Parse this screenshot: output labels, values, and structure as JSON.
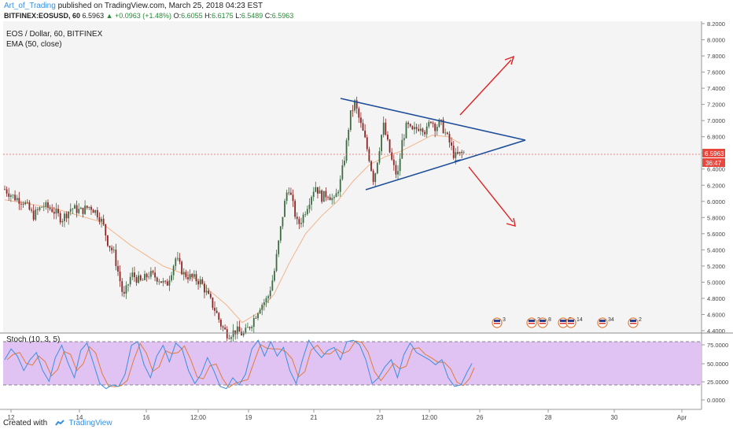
{
  "header": {
    "author": "Art_of_Trading",
    "publish_text": "published on TradingView.com, March 25, 2018 04:23 EST",
    "ticker": "BITFINEX:EOSUSD, 60",
    "last": "6.5963",
    "change": "▲ +0.0963 (+1.48%)",
    "open_label": "O:",
    "open": "6.6055",
    "high_label": "H:",
    "high": "6.6175",
    "low_label": "L:",
    "low": "6.5489",
    "close_label": "C:",
    "close": "6.5963"
  },
  "legend": {
    "symbol": "EOS / Dollar, 60, BITFINEX",
    "indicator": "EMA (50, close)",
    "oscillator": "Stoch (10, 3, 5)"
  },
  "footer": {
    "created_with": "Created with",
    "brand": "TradingView"
  },
  "colors": {
    "up": "#3d6b43",
    "down": "#8a2525",
    "ema": "#f2b48a",
    "triangle": "#1f4e9a",
    "arrow": "#e02020",
    "price_label_bg": "#e8473d",
    "stoch_k": "#3a8fe0",
    "stoch_d": "#e07a3a",
    "stoch_band": "#e0c3f2"
  },
  "chart_data": {
    "type": "candlestick",
    "price_axis": {
      "ticks": [
        "4.4000",
        "4.6000",
        "4.8000",
        "5.0000",
        "5.2000",
        "5.4000",
        "5.6000",
        "5.8000",
        "6.0000",
        "6.2000",
        "6.4000",
        "6.6000",
        "6.8000",
        "7.0000",
        "7.2000",
        "7.4000",
        "7.6000",
        "7.8000",
        "8.0000",
        "8.2000"
      ],
      "range": [
        4.4,
        8.2
      ],
      "current_price": "6.5963",
      "countdown": "36:47"
    },
    "time_axis": {
      "ticks": [
        "12",
        "14",
        "16",
        "12:00",
        "19",
        "21",
        "23",
        "12:00",
        "26",
        "28",
        "30",
        "Apr"
      ]
    },
    "stoch_axis": {
      "ticks": [
        "75.0000",
        "50.0000",
        "25.0000",
        "0.0000"
      ],
      "range": [
        0,
        100
      ],
      "bands": [
        80,
        20
      ]
    },
    "price_path": [
      [
        0,
        6.15
      ],
      [
        12,
        6.05
      ],
      [
        24,
        6.0
      ],
      [
        36,
        5.82
      ],
      [
        48,
        5.95
      ],
      [
        60,
        5.9
      ],
      [
        72,
        5.78
      ],
      [
        84,
        5.92
      ],
      [
        96,
        5.88
      ],
      [
        108,
        5.94
      ],
      [
        118,
        5.84
      ],
      [
        124,
        5.72
      ],
      [
        130,
        5.5
      ],
      [
        138,
        5.35
      ],
      [
        146,
        5.0
      ],
      [
        150,
        4.8
      ],
      [
        160,
        5.1
      ],
      [
        172,
        5.0
      ],
      [
        182,
        5.1
      ],
      [
        194,
        5.05
      ],
      [
        204,
        4.95
      ],
      [
        216,
        5.3
      ],
      [
        226,
        5.1
      ],
      [
        238,
        5.05
      ],
      [
        248,
        5.0
      ],
      [
        258,
        4.8
      ],
      [
        266,
        4.65
      ],
      [
        274,
        4.45
      ],
      [
        282,
        4.35
      ],
      [
        292,
        4.4
      ],
      [
        302,
        4.35
      ],
      [
        312,
        4.5
      ],
      [
        322,
        4.7
      ],
      [
        332,
        4.8
      ],
      [
        340,
        5.1
      ],
      [
        346,
        5.5
      ],
      [
        352,
        5.9
      ],
      [
        358,
        6.2
      ],
      [
        364,
        5.95
      ],
      [
        370,
        5.7
      ],
      [
        376,
        5.8
      ],
      [
        384,
        6.0
      ],
      [
        392,
        6.2
      ],
      [
        400,
        6.05
      ],
      [
        408,
        6.1
      ],
      [
        416,
        6.0
      ],
      [
        424,
        6.25
      ],
      [
        430,
        6.6
      ],
      [
        436,
        7.05
      ],
      [
        442,
        7.22
      ],
      [
        448,
        7.0
      ],
      [
        454,
        6.8
      ],
      [
        460,
        6.55
      ],
      [
        466,
        6.25
      ],
      [
        472,
        6.6
      ],
      [
        478,
        6.95
      ],
      [
        484,
        6.7
      ],
      [
        490,
        6.45
      ],
      [
        496,
        6.3
      ],
      [
        502,
        6.75
      ],
      [
        508,
        6.95
      ],
      [
        514,
        6.85
      ],
      [
        520,
        6.9
      ],
      [
        526,
        6.95
      ],
      [
        532,
        6.85
      ],
      [
        538,
        7.02
      ],
      [
        544,
        6.92
      ],
      [
        550,
        6.98
      ],
      [
        556,
        6.85
      ],
      [
        562,
        6.72
      ],
      [
        568,
        6.55
      ],
      [
        574,
        6.58
      ],
      [
        580,
        6.6
      ]
    ],
    "ema_path": [
      [
        0,
        6.02
      ],
      [
        60,
        5.92
      ],
      [
        120,
        5.75
      ],
      [
        160,
        5.45
      ],
      [
        200,
        5.2
      ],
      [
        240,
        5.05
      ],
      [
        280,
        4.72
      ],
      [
        300,
        4.5
      ],
      [
        320,
        4.62
      ],
      [
        340,
        4.85
      ],
      [
        360,
        5.25
      ],
      [
        380,
        5.6
      ],
      [
        400,
        5.82
      ],
      [
        420,
        6.0
      ],
      [
        440,
        6.25
      ],
      [
        460,
        6.45
      ],
      [
        480,
        6.55
      ],
      [
        500,
        6.62
      ],
      [
        520,
        6.72
      ],
      [
        540,
        6.82
      ],
      [
        560,
        6.8
      ],
      [
        575,
        6.72
      ]
    ],
    "stoch_k": [
      [
        0,
        55
      ],
      [
        8,
        70
      ],
      [
        16,
        60
      ],
      [
        24,
        40
      ],
      [
        32,
        55
      ],
      [
        40,
        65
      ],
      [
        48,
        40
      ],
      [
        56,
        25
      ],
      [
        64,
        58
      ],
      [
        72,
        75
      ],
      [
        80,
        50
      ],
      [
        88,
        30
      ],
      [
        96,
        68
      ],
      [
        104,
        78
      ],
      [
        112,
        50
      ],
      [
        120,
        22
      ],
      [
        128,
        15
      ],
      [
        136,
        20
      ],
      [
        144,
        18
      ],
      [
        152,
        35
      ],
      [
        160,
        75
      ],
      [
        168,
        80
      ],
      [
        176,
        48
      ],
      [
        184,
        30
      ],
      [
        192,
        60
      ],
      [
        200,
        75
      ],
      [
        208,
        52
      ],
      [
        216,
        78
      ],
      [
        224,
        70
      ],
      [
        232,
        40
      ],
      [
        240,
        22
      ],
      [
        248,
        35
      ],
      [
        256,
        58
      ],
      [
        264,
        40
      ],
      [
        272,
        18
      ],
      [
        280,
        15
      ],
      [
        288,
        30
      ],
      [
        296,
        20
      ],
      [
        304,
        35
      ],
      [
        312,
        70
      ],
      [
        320,
        82
      ],
      [
        328,
        60
      ],
      [
        336,
        80
      ],
      [
        344,
        60
      ],
      [
        352,
        72
      ],
      [
        360,
        40
      ],
      [
        368,
        22
      ],
      [
        376,
        55
      ],
      [
        384,
        82
      ],
      [
        392,
        68
      ],
      [
        400,
        58
      ],
      [
        408,
        68
      ],
      [
        416,
        72
      ],
      [
        424,
        55
      ],
      [
        432,
        80
      ],
      [
        440,
        82
      ],
      [
        448,
        76
      ],
      [
        456,
        55
      ],
      [
        464,
        22
      ],
      [
        472,
        30
      ],
      [
        480,
        45
      ],
      [
        488,
        55
      ],
      [
        496,
        30
      ],
      [
        504,
        62
      ],
      [
        512,
        78
      ],
      [
        520,
        65
      ],
      [
        528,
        60
      ],
      [
        536,
        55
      ],
      [
        544,
        48
      ],
      [
        552,
        55
      ],
      [
        560,
        30
      ],
      [
        568,
        18
      ],
      [
        576,
        20
      ],
      [
        584,
        38
      ],
      [
        590,
        50
      ]
    ]
  },
  "events": [
    {
      "label": "3"
    },
    {
      "label": "2"
    },
    {
      "label": "8"
    },
    {
      "label": "5"
    },
    {
      "label": "14"
    },
    {
      "label": "34"
    },
    {
      "label": "2"
    }
  ]
}
